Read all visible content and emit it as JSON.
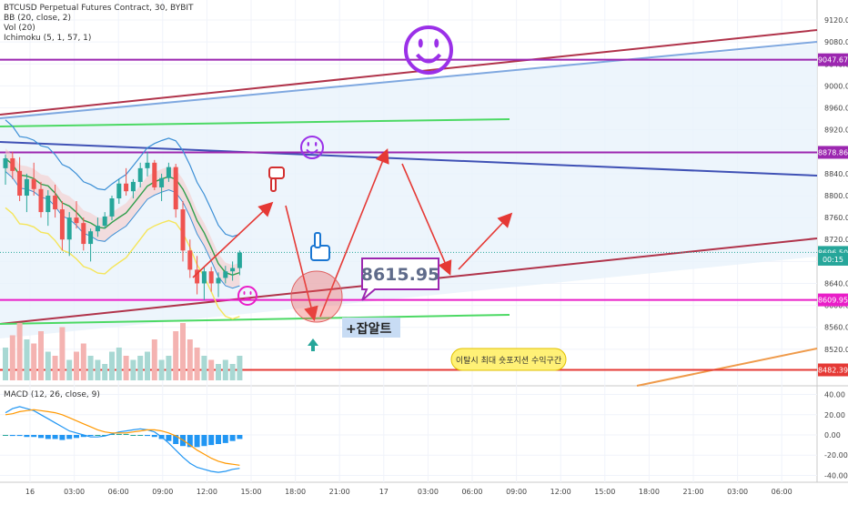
{
  "chart_data": {
    "type": "candlestick",
    "symbol_line": "BTCUSD Perpetual Futures Contract, 30, BYBIT",
    "indicators": [
      "BB (20, close, 2)",
      "Vol (20)",
      "Ichimoku (5, 1, 57, 1)"
    ],
    "macd_label": "MACD (12, 26, close, 9)",
    "price_axis": {
      "ticks": [
        "9120.00",
        "9080.00",
        "9040.00",
        "9000.00",
        "8960.00",
        "8920.00",
        "8880.00",
        "8840.00",
        "8800.00",
        "8760.00",
        "8720.00",
        "8680.00",
        "8640.00",
        "8600.00",
        "8560.00",
        "8520.00"
      ],
      "ylim": [
        8460,
        9140
      ]
    },
    "macd_axis": {
      "ticks": [
        "40.00",
        "20.00",
        "0.00",
        "-20.00",
        "-40.00"
      ],
      "ylim": [
        -45,
        45
      ]
    },
    "time_axis": {
      "ticks": [
        "16",
        "03:00",
        "06:00",
        "09:00",
        "12:00",
        "15:00",
        "18:00",
        "21:00",
        "17",
        "03:00",
        "06:00",
        "09:00",
        "12:00",
        "15:00",
        "18:00",
        "21:00",
        "03:00",
        "06:00"
      ]
    },
    "price_labels": [
      {
        "text": "9047.67",
        "value": 9047.67,
        "color": "#9c27b0"
      },
      {
        "text": "8878.86",
        "value": 8878.86,
        "color": "#9c27b0"
      },
      {
        "text": "8696.50",
        "value": 8696.5,
        "color": "#26a69a"
      },
      {
        "text": "00:15",
        "value": 8684,
        "color": "#26a69a"
      },
      {
        "text": "8609.95",
        "value": 8609.95,
        "color": "#e91ec8"
      },
      {
        "text": "8482.39",
        "value": 8482.39,
        "color": "#e53935"
      }
    ],
    "horizontal_levels": [
      {
        "value": 9047.67,
        "color": "#9c27b0"
      },
      {
        "value": 8878.86,
        "color": "#9c27b0"
      },
      {
        "value": 8609.95,
        "color": "#e91ec8"
      },
      {
        "value": 8482.39,
        "color": "#e53935"
      }
    ],
    "candles": [
      [
        8850,
        8875,
        8820,
        8868
      ],
      [
        8868,
        8880,
        8830,
        8845
      ],
      [
        8845,
        8870,
        8790,
        8800
      ],
      [
        8800,
        8840,
        8770,
        8830
      ],
      [
        8830,
        8860,
        8800,
        8812
      ],
      [
        8812,
        8825,
        8760,
        8770
      ],
      [
        8770,
        8810,
        8745,
        8800
      ],
      [
        8800,
        8820,
        8760,
        8775
      ],
      [
        8775,
        8790,
        8700,
        8720
      ],
      [
        8720,
        8770,
        8690,
        8760
      ],
      [
        8760,
        8790,
        8740,
        8750
      ],
      [
        8750,
        8760,
        8700,
        8712
      ],
      [
        8712,
        8740,
        8680,
        8735
      ],
      [
        8735,
        8760,
        8725,
        8745
      ],
      [
        8745,
        8770,
        8740,
        8762
      ],
      [
        8762,
        8800,
        8755,
        8795
      ],
      [
        8795,
        8830,
        8785,
        8822
      ],
      [
        8822,
        8850,
        8800,
        8808
      ],
      [
        8808,
        8830,
        8795,
        8825
      ],
      [
        8825,
        8860,
        8815,
        8850
      ],
      [
        8850,
        8880,
        8835,
        8860
      ],
      [
        8860,
        8865,
        8810,
        8815
      ],
      [
        8815,
        8840,
        8790,
        8832
      ],
      [
        8832,
        8860,
        8825,
        8852
      ],
      [
        8852,
        8858,
        8760,
        8775
      ],
      [
        8775,
        8790,
        8680,
        8700
      ],
      [
        8700,
        8720,
        8650,
        8665
      ],
      [
        8665,
        8690,
        8620,
        8640
      ],
      [
        8640,
        8670,
        8610,
        8662
      ],
      [
        8662,
        8670,
        8625,
        8640
      ],
      [
        8640,
        8660,
        8615,
        8650
      ],
      [
        8650,
        8672,
        8640,
        8662
      ],
      [
        8662,
        8680,
        8645,
        8668
      ],
      [
        8668,
        8700,
        8655,
        8696
      ]
    ],
    "volumes": [
      40,
      55,
      70,
      50,
      45,
      60,
      35,
      30,
      65,
      25,
      35,
      45,
      30,
      25,
      20,
      35,
      40,
      30,
      25,
      30,
      35,
      50,
      25,
      30,
      60,
      70,
      50,
      40,
      30,
      25,
      20,
      25,
      20,
      30
    ],
    "macd": {
      "hist": [
        0,
        -1,
        -1,
        -2,
        -2,
        -3,
        -4,
        -4,
        -5,
        -4,
        -3,
        -2,
        -1,
        0,
        0,
        1,
        1,
        1,
        0,
        0,
        -1,
        -2,
        -4,
        -6,
        -9,
        -11,
        -12,
        -12,
        -11,
        -10,
        -9,
        -8,
        -6,
        -4
      ],
      "macd": [
        22,
        26,
        28,
        26,
        24,
        20,
        16,
        12,
        8,
        4,
        2,
        0,
        -2,
        -2,
        -1,
        1,
        3,
        4,
        5,
        6,
        5,
        3,
        -2,
        -8,
        -15,
        -22,
        -28,
        -32,
        -34,
        -36,
        -37,
        -36,
        -34,
        -33
      ],
      "signal": [
        20,
        21,
        23,
        24,
        25,
        24,
        23,
        22,
        20,
        17,
        14,
        11,
        8,
        5,
        3,
        2,
        2,
        2,
        3,
        4,
        5,
        5,
        4,
        2,
        -1,
        -5,
        -10,
        -15,
        -19,
        -23,
        -26,
        -28,
        -29,
        -30
      ]
    },
    "annotations": {
      "price_box": "8615.95",
      "korean_label": "+잡알트",
      "bubble": "이탈시 최대 숏포지션 수익구간"
    }
  },
  "colors": {
    "up": "#26a69a",
    "down": "#ef5350",
    "arrow": "#e53935",
    "purple": "#9c27b0",
    "magenta": "#e91ec8",
    "green": "#4cd964",
    "blue_line": "#3f51b5",
    "light_blue": "#7fa8e0",
    "maroon": "#b0334a",
    "orange": "#ef9a4a",
    "yellow": "#f5e55a",
    "bb": "#3b8fd6"
  }
}
